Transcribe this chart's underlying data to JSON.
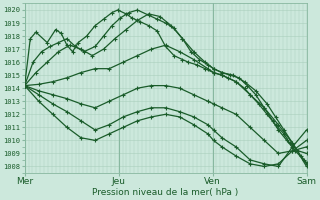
{
  "xlabel": "Pression niveau de la mer( hPa )",
  "bg_color": "#cce8dc",
  "grid_minor_color": "#aacfbc",
  "grid_major_color": "#88b8a0",
  "line_color": "#1a5c2a",
  "ylim": [
    1007.5,
    1020.5
  ],
  "yticks": [
    1008,
    1009,
    1010,
    1011,
    1012,
    1013,
    1014,
    1015,
    1016,
    1017,
    1018,
    1019,
    1020
  ],
  "xtick_labels": [
    "Mer",
    "Jeu",
    "Ven",
    "Sam"
  ],
  "xtick_positions": [
    0,
    0.333,
    0.667,
    1.0
  ],
  "series": [
    {
      "x": [
        0.0,
        0.02,
        0.04,
        0.08,
        0.11,
        0.13,
        0.15,
        0.17,
        0.19,
        0.22,
        0.25,
        0.28,
        0.31,
        0.33,
        0.36,
        0.38,
        0.41,
        0.44,
        0.47,
        0.5,
        0.53,
        0.56,
        0.58,
        0.61,
        0.64,
        0.67,
        0.7,
        0.72,
        0.75,
        0.78,
        0.8,
        0.83,
        0.86,
        0.89,
        0.92,
        0.94,
        0.97,
        1.0
      ],
      "y": [
        1014.2,
        1017.8,
        1018.3,
        1017.5,
        1018.5,
        1018.2,
        1017.3,
        1016.8,
        1017.5,
        1018.0,
        1018.8,
        1019.3,
        1019.8,
        1020.0,
        1019.7,
        1019.4,
        1019.1,
        1018.8,
        1018.4,
        1017.2,
        1016.5,
        1016.2,
        1016.0,
        1015.8,
        1015.5,
        1015.2,
        1015.0,
        1014.8,
        1014.5,
        1014.0,
        1013.5,
        1012.8,
        1012.0,
        1011.2,
        1010.5,
        1009.8,
        1009.2,
        1009.0
      ]
    },
    {
      "x": [
        0.0,
        0.03,
        0.06,
        0.09,
        0.12,
        0.15,
        0.18,
        0.21,
        0.25,
        0.28,
        0.31,
        0.34,
        0.37,
        0.4,
        0.44,
        0.47,
        0.5,
        0.53,
        0.56,
        0.59,
        0.62,
        0.65,
        0.67,
        0.7,
        0.73,
        0.76,
        0.79,
        0.82,
        0.85,
        0.88,
        0.9,
        0.93,
        0.96,
        0.99,
        1.0
      ],
      "y": [
        1014.2,
        1016.0,
        1016.8,
        1017.2,
        1017.5,
        1017.8,
        1017.2,
        1016.8,
        1017.2,
        1018.0,
        1018.8,
        1019.4,
        1019.8,
        1020.0,
        1019.6,
        1019.3,
        1019.0,
        1018.6,
        1017.8,
        1016.8,
        1016.2,
        1015.8,
        1015.5,
        1015.2,
        1015.0,
        1014.8,
        1014.2,
        1013.5,
        1012.5,
        1011.5,
        1010.8,
        1010.0,
        1009.2,
        1008.5,
        1008.2
      ]
    },
    {
      "x": [
        0.0,
        0.04,
        0.08,
        0.12,
        0.16,
        0.2,
        0.24,
        0.28,
        0.32,
        0.36,
        0.4,
        0.44,
        0.48,
        0.52,
        0.56,
        0.6,
        0.64,
        0.67,
        0.7,
        0.74,
        0.78,
        0.82,
        0.86,
        0.89,
        0.92,
        0.95,
        0.98,
        1.0
      ],
      "y": [
        1014.2,
        1015.2,
        1016.0,
        1016.8,
        1017.3,
        1017.0,
        1016.5,
        1017.0,
        1017.8,
        1018.5,
        1019.2,
        1019.7,
        1019.5,
        1018.8,
        1017.8,
        1016.8,
        1016.0,
        1015.5,
        1015.2,
        1015.0,
        1014.5,
        1013.8,
        1012.8,
        1011.8,
        1010.8,
        1009.8,
        1008.8,
        1008.3
      ]
    },
    {
      "x": [
        0.0,
        0.05,
        0.1,
        0.15,
        0.2,
        0.25,
        0.3,
        0.35,
        0.4,
        0.45,
        0.5,
        0.55,
        0.6,
        0.65,
        0.67,
        0.7,
        0.75,
        0.8,
        0.85,
        0.9,
        0.95,
        1.0
      ],
      "y": [
        1014.2,
        1014.3,
        1014.5,
        1014.8,
        1015.2,
        1015.5,
        1015.5,
        1016.0,
        1016.5,
        1017.0,
        1017.3,
        1016.8,
        1016.2,
        1015.5,
        1015.2,
        1015.0,
        1014.5,
        1013.5,
        1012.5,
        1011.2,
        1009.8,
        1008.0
      ]
    },
    {
      "x": [
        0.0,
        0.05,
        0.1,
        0.15,
        0.2,
        0.25,
        0.3,
        0.35,
        0.4,
        0.45,
        0.5,
        0.55,
        0.6,
        0.65,
        0.67,
        0.7,
        0.75,
        0.8,
        0.85,
        0.9,
        0.95,
        1.0
      ],
      "y": [
        1014.2,
        1013.8,
        1013.5,
        1013.2,
        1012.8,
        1012.5,
        1013.0,
        1013.5,
        1014.0,
        1014.2,
        1014.2,
        1014.0,
        1013.5,
        1013.0,
        1012.8,
        1012.5,
        1012.0,
        1011.0,
        1010.0,
        1009.0,
        1009.2,
        1009.5
      ]
    },
    {
      "x": [
        0.0,
        0.05,
        0.1,
        0.15,
        0.2,
        0.25,
        0.3,
        0.35,
        0.4,
        0.45,
        0.5,
        0.55,
        0.6,
        0.65,
        0.67,
        0.7,
        0.75,
        0.8,
        0.85,
        0.9,
        0.95,
        1.0
      ],
      "y": [
        1014.2,
        1013.5,
        1012.8,
        1012.2,
        1011.5,
        1010.8,
        1011.2,
        1011.8,
        1012.2,
        1012.5,
        1012.5,
        1012.2,
        1011.8,
        1011.2,
        1010.8,
        1010.2,
        1009.5,
        1008.5,
        1008.2,
        1008.0,
        1009.5,
        1010.8
      ]
    },
    {
      "x": [
        0.0,
        0.05,
        0.1,
        0.15,
        0.2,
        0.25,
        0.3,
        0.35,
        0.4,
        0.45,
        0.5,
        0.55,
        0.6,
        0.65,
        0.67,
        0.7,
        0.75,
        0.8,
        0.85,
        0.9,
        0.95,
        1.0
      ],
      "y": [
        1014.2,
        1013.0,
        1012.0,
        1011.0,
        1010.2,
        1010.0,
        1010.5,
        1011.0,
        1011.5,
        1011.8,
        1012.0,
        1011.8,
        1011.2,
        1010.5,
        1010.0,
        1009.5,
        1008.8,
        1008.2,
        1008.0,
        1008.2,
        1009.2,
        1010.0
      ]
    }
  ]
}
